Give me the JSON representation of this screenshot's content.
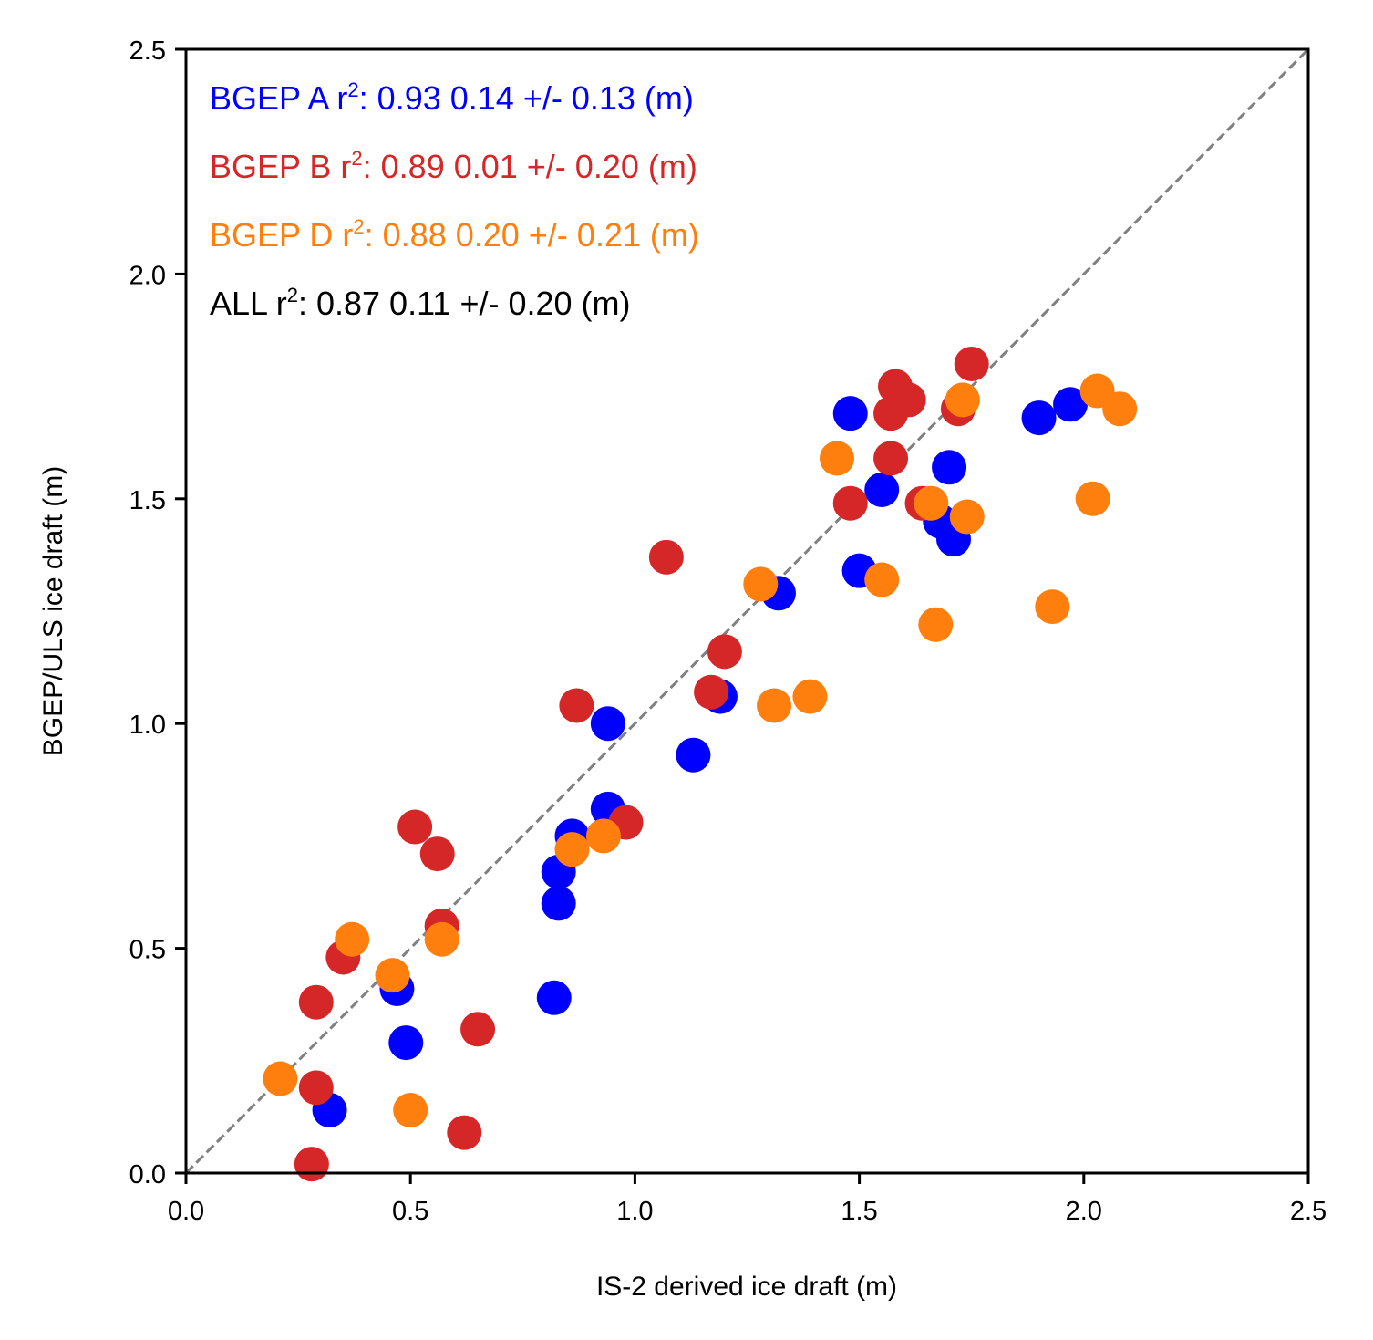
{
  "chart_data": {
    "type": "scatter",
    "title": "",
    "xlabel": "IS-2 derived ice draft (m)",
    "ylabel": "BGEP/ULS ice draft (m)",
    "xlim": [
      0.0,
      2.5
    ],
    "ylim": [
      0.0,
      2.5
    ],
    "xticks": [
      0.0,
      0.5,
      1.0,
      1.5,
      2.0,
      2.5
    ],
    "yticks": [
      0.0,
      0.5,
      1.0,
      1.5,
      2.0,
      2.5
    ],
    "xtick_labels": [
      "0.0",
      "0.5",
      "1.0",
      "1.5",
      "2.0",
      "2.5"
    ],
    "ytick_labels": [
      "0.0",
      "0.5",
      "1.0",
      "1.5",
      "2.0",
      "2.5"
    ],
    "grid": false,
    "reference_line": {
      "label": "1:1 line",
      "from": [
        0.0,
        0.0
      ],
      "to": [
        2.5,
        2.5
      ],
      "color": "#808080",
      "style": "dashed"
    },
    "series": [
      {
        "name": "BGEP A",
        "color": "#0000ff",
        "x": [
          0.32,
          0.47,
          0.49,
          0.82,
          0.83,
          0.83,
          0.86,
          0.94,
          0.94,
          1.13,
          1.19,
          1.32,
          1.48,
          1.5,
          1.55,
          1.68,
          1.7,
          1.71,
          1.9,
          1.97
        ],
        "y": [
          0.14,
          0.41,
          0.29,
          0.39,
          0.6,
          0.67,
          0.75,
          0.81,
          1.0,
          0.93,
          1.06,
          1.29,
          1.69,
          1.34,
          1.52,
          1.45,
          1.57,
          1.41,
          1.68,
          1.71
        ]
      },
      {
        "name": "BGEP B",
        "color": "#d62728",
        "x": [
          0.28,
          0.29,
          0.29,
          0.35,
          0.51,
          0.56,
          0.57,
          0.62,
          0.65,
          0.87,
          0.98,
          1.07,
          1.17,
          1.2,
          1.48,
          1.57,
          1.57,
          1.58,
          1.61,
          1.64,
          1.72,
          1.75
        ],
        "y": [
          0.02,
          0.19,
          0.38,
          0.48,
          0.77,
          0.71,
          0.55,
          0.09,
          0.32,
          1.04,
          0.78,
          1.37,
          1.07,
          1.16,
          1.49,
          1.69,
          1.59,
          1.75,
          1.72,
          1.49,
          1.7,
          1.8
        ]
      },
      {
        "name": "BGEP D",
        "color": "#ff7f0e",
        "x": [
          0.21,
          0.37,
          0.46,
          0.5,
          0.57,
          0.86,
          0.93,
          1.28,
          1.31,
          1.39,
          1.45,
          1.55,
          1.66,
          1.67,
          1.73,
          1.74,
          1.93,
          2.02,
          2.03,
          2.08
        ],
        "y": [
          0.21,
          0.52,
          0.44,
          0.14,
          0.52,
          0.72,
          0.75,
          1.31,
          1.04,
          1.06,
          1.59,
          1.32,
          1.49,
          1.22,
          1.72,
          1.46,
          1.26,
          1.5,
          1.74,
          1.7
        ]
      }
    ],
    "annotations": [
      {
        "name": "BGEP A",
        "text_main": "BGEP A  r",
        "sup": "2",
        "text_rest": ": 0.93  0.14 +/- 0.13 (m)",
        "color": "#0000ff",
        "r2": 0.93,
        "mean_diff": 0.14,
        "std": 0.13
      },
      {
        "name": "BGEP B",
        "text_main": "BGEP B  r",
        "sup": "2",
        "text_rest": ": 0.89  0.01 +/- 0.20 (m)",
        "color": "#d62728",
        "r2": 0.89,
        "mean_diff": 0.01,
        "std": 0.2
      },
      {
        "name": "BGEP D",
        "text_main": "BGEP D  r",
        "sup": "2",
        "text_rest": ": 0.88  0.20 +/- 0.21 (m)",
        "color": "#ff7f0e",
        "r2": 0.88,
        "mean_diff": 0.2,
        "std": 0.21
      },
      {
        "name": "ALL",
        "text_main": "ALL  r",
        "sup": "2",
        "text_rest": ": 0.87  0.11 +/- 0.20 (m)",
        "color": "#000000",
        "r2": 0.87,
        "mean_diff": 0.11,
        "std": 0.2
      }
    ]
  }
}
